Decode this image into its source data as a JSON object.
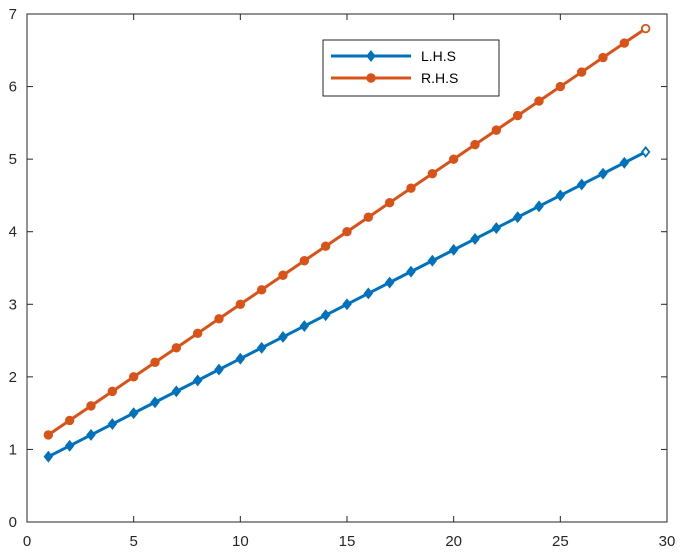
{
  "chart_data": {
    "type": "line",
    "title": "",
    "xlabel": "",
    "ylabel": "",
    "xlim": [
      0,
      30
    ],
    "ylim": [
      0,
      7
    ],
    "xticks": [
      0,
      5,
      10,
      15,
      20,
      25,
      30
    ],
    "yticks": [
      0,
      1,
      2,
      3,
      4,
      5,
      6,
      7
    ],
    "grid": false,
    "legend_position": "top-right",
    "x": [
      1,
      2,
      3,
      4,
      5,
      6,
      7,
      8,
      9,
      10,
      11,
      12,
      13,
      14,
      15,
      16,
      17,
      18,
      19,
      20,
      21,
      22,
      23,
      24,
      25,
      26,
      27,
      28,
      29
    ],
    "series": [
      {
        "name": "L.H.S",
        "color": "#0072BD",
        "marker": "diamond",
        "values": [
          0.9,
          1.05,
          1.2,
          1.35,
          1.5,
          1.65,
          1.8,
          1.95,
          2.1,
          2.25,
          2.4,
          2.55,
          2.7,
          2.85,
          3.0,
          3.15,
          3.3,
          3.45,
          3.6,
          3.75,
          3.9,
          4.05,
          4.2,
          4.35,
          4.5,
          4.65,
          4.8,
          4.95,
          5.1
        ]
      },
      {
        "name": "R.H.S",
        "color": "#D95319",
        "marker": "circle",
        "values": [
          1.2,
          1.4,
          1.6,
          1.8,
          2.0,
          2.2,
          2.4,
          2.6,
          2.8,
          3.0,
          3.2,
          3.4,
          3.6,
          3.8,
          4.0,
          4.2,
          4.4,
          4.6,
          4.8,
          5.0,
          5.2,
          5.4,
          5.6,
          5.8,
          6.0,
          6.2,
          6.4,
          6.6,
          6.8
        ]
      }
    ]
  }
}
